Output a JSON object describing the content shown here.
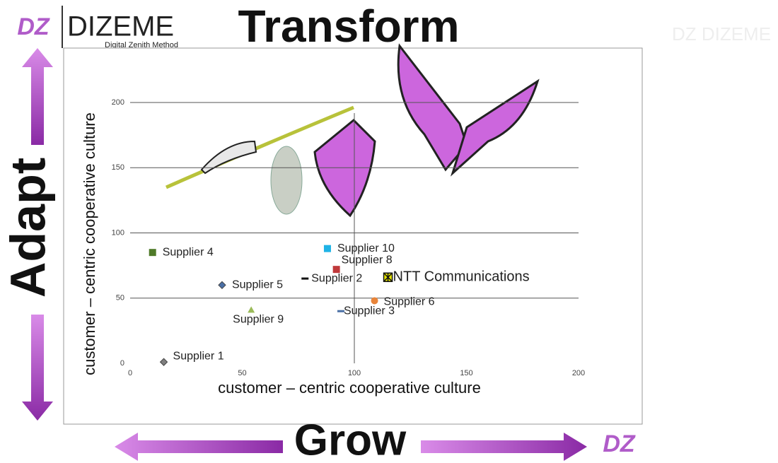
{
  "slide": {
    "title": "Transform",
    "left_label": "Adapt",
    "bottom_label": "Grow",
    "logo_mark": "DZ",
    "logo_name": "DIZEME",
    "logo_tagline": "Digital Zenith Method",
    "watermark": "DZ DIZEME",
    "corner_mark": "DZ"
  },
  "chart_data": {
    "type": "scatter",
    "xlabel": "customer – centric cooperative culture",
    "ylabel": "customer – centric cooperative culture",
    "xlim": [
      0,
      200
    ],
    "ylim": [
      0,
      200
    ],
    "xticks": [
      0,
      50,
      100,
      150,
      200
    ],
    "yticks": [
      0,
      50,
      100,
      150,
      200
    ],
    "grid": true,
    "vline": 100,
    "series": [
      {
        "name": "Supplier 1",
        "color": "#7f7f7f",
        "marker": "diamond",
        "x": [
          15
        ],
        "values": [
          1
        ]
      },
      {
        "name": "Supplier 4",
        "color": "#4f7a28",
        "marker": "square",
        "x": [
          10
        ],
        "values": [
          85
        ]
      },
      {
        "name": "Supplier 5",
        "color": "#4a6fa5",
        "marker": "diamond",
        "x": [
          41
        ],
        "values": [
          60
        ]
      },
      {
        "name": "Supplier 9",
        "color": "#9bbb59",
        "marker": "triangle",
        "x": [
          54
        ],
        "values": [
          41
        ]
      },
      {
        "name": "Supplier 10",
        "color": "#1fb3e6",
        "marker": "square",
        "x": [
          88
        ],
        "values": [
          88
        ]
      },
      {
        "name": "Supplier 8",
        "color": "#c0393b",
        "marker": "square",
        "x": [
          92
        ],
        "values": [
          72
        ]
      },
      {
        "name": "Supplier 2",
        "color": "#111111",
        "marker": "dash",
        "x": [
          78
        ],
        "values": [
          65
        ]
      },
      {
        "name": "Supplier 3",
        "color": "#4a6fa5",
        "marker": "dash",
        "x": [
          94
        ],
        "values": [
          40
        ]
      },
      {
        "name": "Supplier 6",
        "color": "#e8843a",
        "marker": "circle",
        "x": [
          109
        ],
        "values": [
          48
        ]
      },
      {
        "name": "NTT Communications",
        "color": "#e6e600",
        "marker": "star",
        "x": [
          115
        ],
        "values": [
          66
        ]
      }
    ]
  }
}
